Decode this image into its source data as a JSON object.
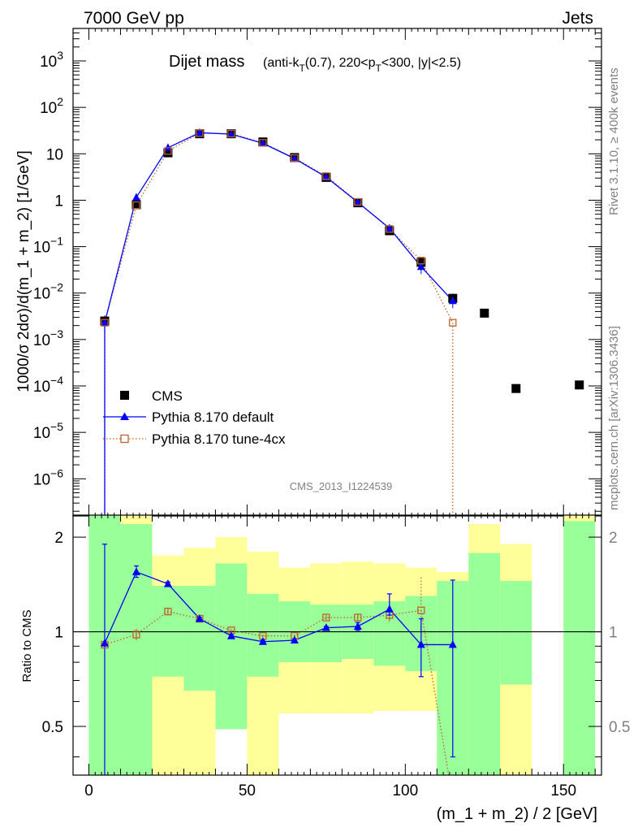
{
  "header": {
    "left": "7000 GeV pp",
    "right": "Jets"
  },
  "side": {
    "rivet": "Rivet 3.1.10, ≥ 400k events",
    "mcplots": "mcplots.cern.ch [arXiv:1306.3436]"
  },
  "chart_data": [
    {
      "type": "scatter",
      "title": "Dijet mass",
      "title_detail": {
        "p1": "(anti-k",
        "sub1": "T",
        "p2": "(0.7), 220<p",
        "sub2": "T",
        "p3": "<300, |y|<2.5)"
      },
      "analysis_tag": "CMS_2013_I1224539",
      "ylabel": "1000/σ 2dσ)/d(m_1 + m_2) [1/GeV]",
      "yscale": "log",
      "xlim": [
        -5,
        162
      ],
      "ylim_exp": [
        -6.8,
        3.7
      ],
      "ytick_labels": [
        {
          "exp": 3,
          "base": "10",
          "sup": "3"
        },
        {
          "exp": 2,
          "base": "10",
          "sup": "2"
        },
        {
          "exp": 1,
          "base": "10",
          "sup": ""
        },
        {
          "exp": 0,
          "base": "1",
          "sup": ""
        },
        {
          "exp": -1,
          "base": "10",
          "sup": "−1"
        },
        {
          "exp": -2,
          "base": "10",
          "sup": "−2"
        },
        {
          "exp": -3,
          "base": "10",
          "sup": "−3"
        },
        {
          "exp": -4,
          "base": "10",
          "sup": "−4"
        },
        {
          "exp": -5,
          "base": "10",
          "sup": "−5"
        },
        {
          "exp": -6,
          "base": "10",
          "sup": "−6"
        }
      ],
      "series": [
        {
          "name": "CMS",
          "style": "marker",
          "color": "#000000",
          "x": [
            5,
            15,
            25,
            35,
            45,
            55,
            65,
            75,
            85,
            95,
            105,
            115,
            125,
            135,
            155
          ],
          "y": [
            0.0025,
            0.8,
            10.5,
            27,
            27,
            18,
            8.3,
            3.1,
            0.88,
            0.22,
            0.046,
            0.0077,
            0.0037,
            8.8e-05,
            0.000105
          ]
        },
        {
          "name": "Pythia 8.170 default",
          "style": "line-triangle",
          "color": "#0000ff",
          "x": [
            5,
            15,
            25,
            35,
            45,
            55,
            65,
            75,
            85,
            95,
            105,
            115
          ],
          "y": [
            0.0023,
            1.15,
            13.5,
            28.5,
            26.5,
            16.8,
            7.9,
            3.15,
            0.9,
            0.25,
            0.037,
            0.0068
          ]
        },
        {
          "name": "Pythia 8.170 tune-4cx",
          "style": "dotted-square",
          "color": "#c0602a",
          "x": [
            5,
            15,
            25,
            35,
            45,
            55,
            65,
            75,
            85,
            95,
            105,
            115
          ],
          "y": [
            0.0023,
            0.78,
            11.5,
            27.8,
            27.2,
            17.2,
            8.1,
            3.3,
            0.92,
            0.24,
            0.05,
            0.0023
          ]
        }
      ]
    },
    {
      "type": "scatter",
      "ylabel": "Ratio to CMS",
      "xlabel": "(m_1 + m_2) / 2 [GeV]",
      "xlim": [
        -5,
        162
      ],
      "ylim": [
        0.35,
        2.35
      ],
      "yscale": "log",
      "yticks": [
        0.5,
        1,
        2
      ],
      "ytick_labels": [
        "0.5",
        "1",
        "2"
      ],
      "xticks": [
        0,
        50,
        100,
        150
      ],
      "xtick_labels": [
        "0",
        "50",
        "100",
        "150"
      ],
      "uncertainty_bands": [
        {
          "x": [
            0,
            10
          ],
          "yellow": [
            0.35,
            2.35
          ],
          "green": [
            0.35,
            2.35
          ]
        },
        {
          "x": [
            10,
            20
          ],
          "yellow": [
            0.35,
            2.35
          ],
          "green": [
            0.35,
            2.2
          ]
        },
        {
          "x": [
            20,
            30
          ],
          "yellow": [
            0.35,
            1.75
          ],
          "green": [
            0.72,
            1.4
          ]
        },
        {
          "x": [
            30,
            40
          ],
          "yellow": [
            0.35,
            1.85
          ],
          "green": [
            0.65,
            1.4
          ]
        },
        {
          "x": [
            40,
            50
          ],
          "yellow": [
            0.49,
            2.0
          ],
          "green": [
            0.49,
            1.65
          ]
        },
        {
          "x": [
            50,
            60
          ],
          "yellow": [
            0.35,
            1.8
          ],
          "green": [
            0.72,
            1.32
          ]
        },
        {
          "x": [
            60,
            70
          ],
          "yellow": [
            0.55,
            1.6
          ],
          "green": [
            0.8,
            1.25
          ]
        },
        {
          "x": [
            70,
            80
          ],
          "yellow": [
            0.55,
            1.65
          ],
          "green": [
            0.8,
            1.22
          ]
        },
        {
          "x": [
            80,
            90
          ],
          "yellow": [
            0.55,
            1.67
          ],
          "green": [
            0.82,
            1.22
          ]
        },
        {
          "x": [
            90,
            100
          ],
          "yellow": [
            0.56,
            1.65
          ],
          "green": [
            0.78,
            1.25
          ]
        },
        {
          "x": [
            100,
            110
          ],
          "yellow": [
            0.56,
            1.6
          ],
          "green": [
            0.75,
            1.3
          ]
        },
        {
          "x": [
            110,
            120
          ],
          "yellow": [
            0.35,
            1.55
          ],
          "green": [
            0.35,
            1.45
          ]
        },
        {
          "x": [
            120,
            130
          ],
          "yellow": [
            0.35,
            2.2
          ],
          "green": [
            0.35,
            1.78
          ]
        },
        {
          "x": [
            130,
            140
          ],
          "yellow": [
            0.35,
            1.9
          ],
          "green": [
            0.68,
            1.45
          ]
        },
        {
          "x": [
            150,
            160
          ],
          "yellow": [
            0.35,
            2.35
          ],
          "green": [
            0.35,
            2.25
          ]
        }
      ],
      "series": [
        {
          "name": "Pythia 8.170 default",
          "style": "line-triangle",
          "color": "#0000ff",
          "x": [
            5,
            15,
            25,
            35,
            45,
            55,
            65,
            75,
            85,
            95,
            105,
            115
          ],
          "y": [
            0.92,
            1.55,
            1.42,
            1.1,
            0.97,
            0.93,
            0.94,
            1.03,
            1.04,
            1.18,
            0.91,
            0.91
          ],
          "yerr_low": [
            0.57,
            0.06,
            0.02,
            0.01,
            0.01,
            0.01,
            0.01,
            0.01,
            0.03,
            0.05,
            0.19,
            0.51
          ],
          "yerr_high": [
            0.98,
            0.07,
            0.02,
            0.01,
            0.01,
            0.01,
            0.01,
            0.01,
            0.03,
            0.14,
            0.19,
            0.55
          ]
        },
        {
          "name": "Pythia 8.170 tune-4cx",
          "style": "dotted-square",
          "color": "#c0602a",
          "x": [
            5,
            15,
            25,
            35,
            45,
            55,
            65,
            75,
            85,
            95,
            105
          ],
          "y": [
            0.91,
            0.98,
            1.16,
            1.1,
            1.01,
            0.97,
            0.97,
            1.11,
            1.11,
            1.13,
            1.17
          ],
          "yerr_low": [
            0.02,
            0.04,
            0.03,
            0.02,
            0.01,
            0.01,
            0.01,
            0.02,
            0.03,
            0.05,
            0.2
          ],
          "yerr_high": [
            0.02,
            0.04,
            0.03,
            0.02,
            0.01,
            0.01,
            0.01,
            0.02,
            0.03,
            0.05,
            0.32
          ]
        }
      ]
    }
  ]
}
